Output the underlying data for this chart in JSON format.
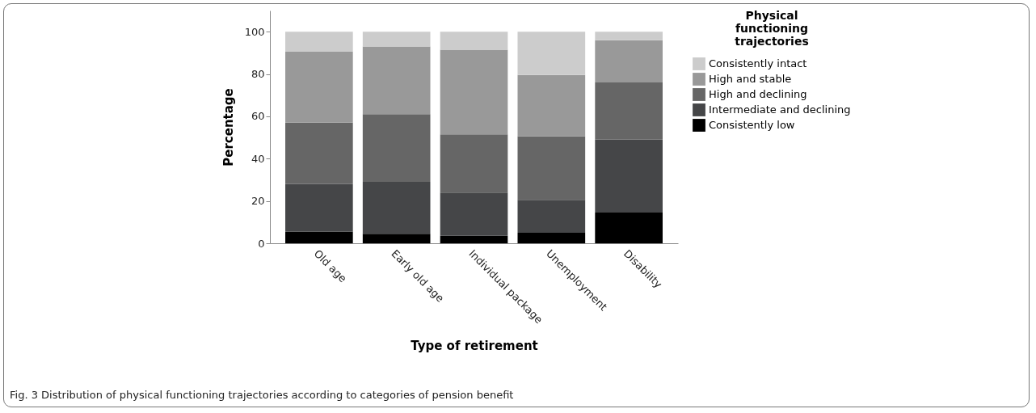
{
  "chart_data": {
    "type": "bar",
    "stacked": true,
    "xlabel": "Type of retirement",
    "ylabel": "Percentage",
    "legend_title": "Physical functioning trajectories",
    "legend": "right",
    "categories": [
      "Old age",
      "Early old age",
      "Individual package",
      "Unemployment",
      "Disability"
    ],
    "series": [
      {
        "name": "Consistently low",
        "color": "#000000",
        "values": [
          5.5,
          4.5,
          3.5,
          5.0,
          14.5
        ]
      },
      {
        "name": "Intermediate and declining",
        "color": "#454648",
        "values": [
          22.5,
          24.5,
          20.5,
          15.5,
          34.5
        ]
      },
      {
        "name": "High and declining",
        "color": "#666666",
        "values": [
          29.0,
          32.0,
          27.5,
          30.0,
          27.0
        ]
      },
      {
        "name": "High and stable",
        "color": "#999999",
        "values": [
          33.5,
          32.0,
          40.0,
          29.0,
          20.0
        ]
      },
      {
        "name": "Consistently intact",
        "color": "#cccccc",
        "values": [
          9.5,
          7.0,
          8.5,
          20.5,
          4.0
        ]
      }
    ],
    "ylim": [
      0,
      110
    ],
    "yticks": [
      0,
      20,
      40,
      60,
      80,
      100
    ],
    "grid": false,
    "annotations": [
      "Fig. 3 Distribution of physical functioning trajectories according to categories of pension benefit"
    ]
  }
}
